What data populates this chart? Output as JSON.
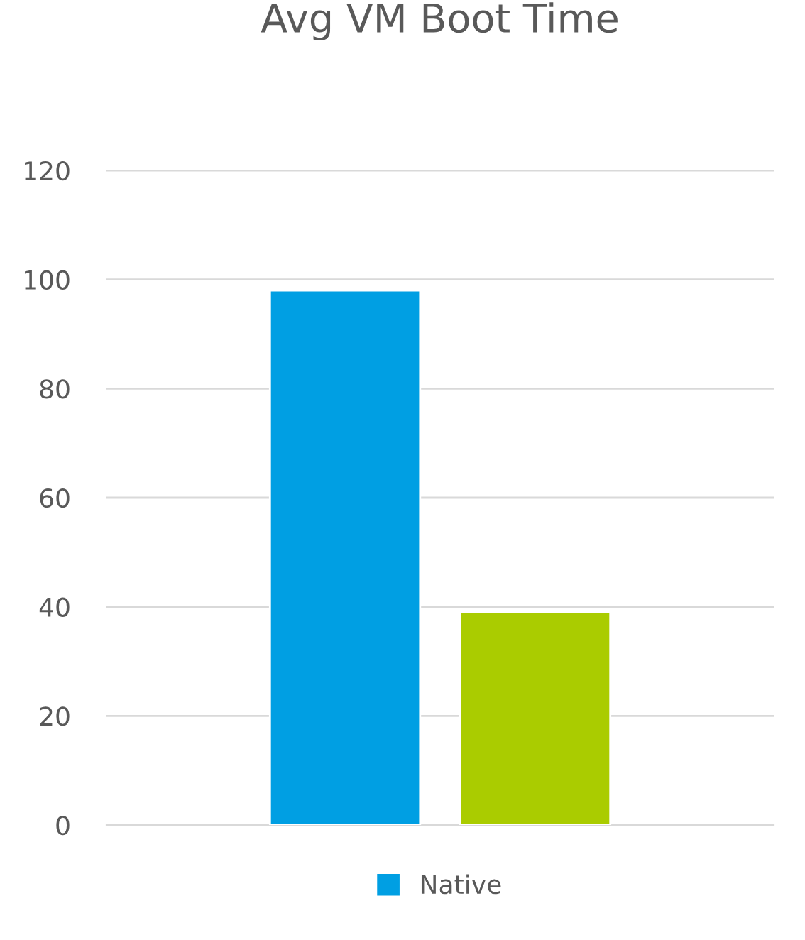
{
  "chart_data": {
    "type": "bar",
    "title": "Avg VM Boot Time",
    "categories": [
      null
    ],
    "series": [
      {
        "name": "Native",
        "color": "#009fe3",
        "values": [
          98
        ]
      },
      {
        "color": "#aacc00",
        "values": [
          39
        ]
      }
    ],
    "ylim": [
      0,
      120
    ],
    "yticks": [
      0,
      20,
      40,
      60,
      80,
      100,
      120
    ],
    "grid": "y",
    "legend": "bottom"
  }
}
